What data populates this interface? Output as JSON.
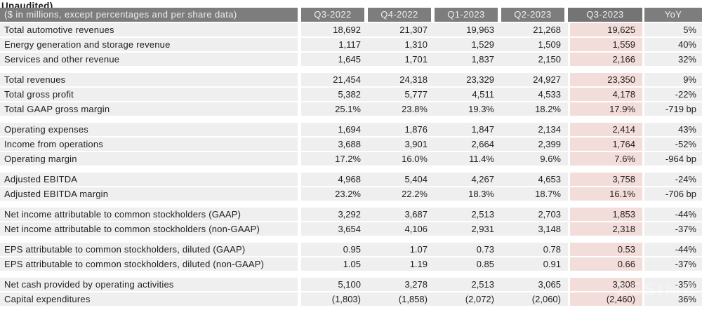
{
  "topline": "Unaudited)",
  "watermark": "ZESIMB",
  "colors": {
    "header_bg": "#7d7d7d",
    "header_highlight_bg": "#747474",
    "header_text": "#efefef",
    "row_bg": "#efefef",
    "highlight_column_bg": "#f3ddda",
    "body_text": "#1f1f1f",
    "background": "#ffffff"
  },
  "table": {
    "header": {
      "label": "($ in millions, except percentages and per share data)",
      "columns": [
        "Q3-2022",
        "Q4-2022",
        "Q1-2023",
        "Q2-2023",
        "Q3-2023",
        "YoY"
      ],
      "highlighted_column": "Q3-2023"
    },
    "sections": [
      {
        "rows": [
          {
            "label": "Total automotive revenues",
            "values": [
              "18,692",
              "21,307",
              "19,963",
              "21,268",
              "19,625",
              "5%"
            ]
          },
          {
            "label": "Energy generation and storage revenue",
            "values": [
              "1,117",
              "1,310",
              "1,529",
              "1,509",
              "1,559",
              "40%"
            ]
          },
          {
            "label": "Services and other revenue",
            "values": [
              "1,645",
              "1,701",
              "1,837",
              "2,150",
              "2,166",
              "32%"
            ]
          }
        ]
      },
      {
        "rows": [
          {
            "label": "Total revenues",
            "values": [
              "21,454",
              "24,318",
              "23,329",
              "24,927",
              "23,350",
              "9%"
            ]
          },
          {
            "label": "Total gross profit",
            "values": [
              "5,382",
              "5,777",
              "4,511",
              "4,533",
              "4,178",
              "-22%"
            ]
          },
          {
            "label": "Total GAAP gross margin",
            "values": [
              "25.1%",
              "23.8%",
              "19.3%",
              "18.2%",
              "17.9%",
              "-719 bp"
            ]
          }
        ]
      },
      {
        "rows": [
          {
            "label": "Operating expenses",
            "values": [
              "1,694",
              "1,876",
              "1,847",
              "2,134",
              "2,414",
              "43%"
            ]
          },
          {
            "label": "Income from operations",
            "values": [
              "3,688",
              "3,901",
              "2,664",
              "2,399",
              "1,764",
              "-52%"
            ]
          },
          {
            "label": "Operating margin",
            "values": [
              "17.2%",
              "16.0%",
              "11.4%",
              "9.6%",
              "7.6%",
              "-964 bp"
            ]
          }
        ]
      },
      {
        "rows": [
          {
            "label": "Adjusted EBITDA",
            "values": [
              "4,968",
              "5,404",
              "4,267",
              "4,653",
              "3,758",
              "-24%"
            ]
          },
          {
            "label": "Adjusted EBITDA margin",
            "values": [
              "23.2%",
              "22.2%",
              "18.3%",
              "18.7%",
              "16.1%",
              "-706 bp"
            ]
          }
        ]
      },
      {
        "rows": [
          {
            "label": "Net income attributable to common stockholders (GAAP)",
            "values": [
              "3,292",
              "3,687",
              "2,513",
              "2,703",
              "1,853",
              "-44%"
            ]
          },
          {
            "label": "Net income attributable to common stockholders (non-GAAP)",
            "values": [
              "3,654",
              "4,106",
              "2,931",
              "3,148",
              "2,318",
              "-37%"
            ]
          }
        ]
      },
      {
        "rows": [
          {
            "label": "EPS attributable to common stockholders, diluted (GAAP)",
            "values": [
              "0.95",
              "1.07",
              "0.73",
              "0.78",
              "0.53",
              "-44%"
            ]
          },
          {
            "label": "EPS attributable to common stockholders, diluted (non-GAAP)",
            "values": [
              "1.05",
              "1.19",
              "0.85",
              "0.91",
              "0.66",
              "-37%"
            ]
          }
        ]
      },
      {
        "rows": [
          {
            "label": "Net cash provided by operating activities",
            "values": [
              "5,100",
              "3,278",
              "2,513",
              "3,065",
              "3,308",
              "-35%"
            ]
          },
          {
            "label": "Capital expenditures",
            "values": [
              "(1,803)",
              "(1,858)",
              "(2,072)",
              "(2,060)",
              "(2,460)",
              "36%"
            ]
          }
        ]
      }
    ]
  }
}
